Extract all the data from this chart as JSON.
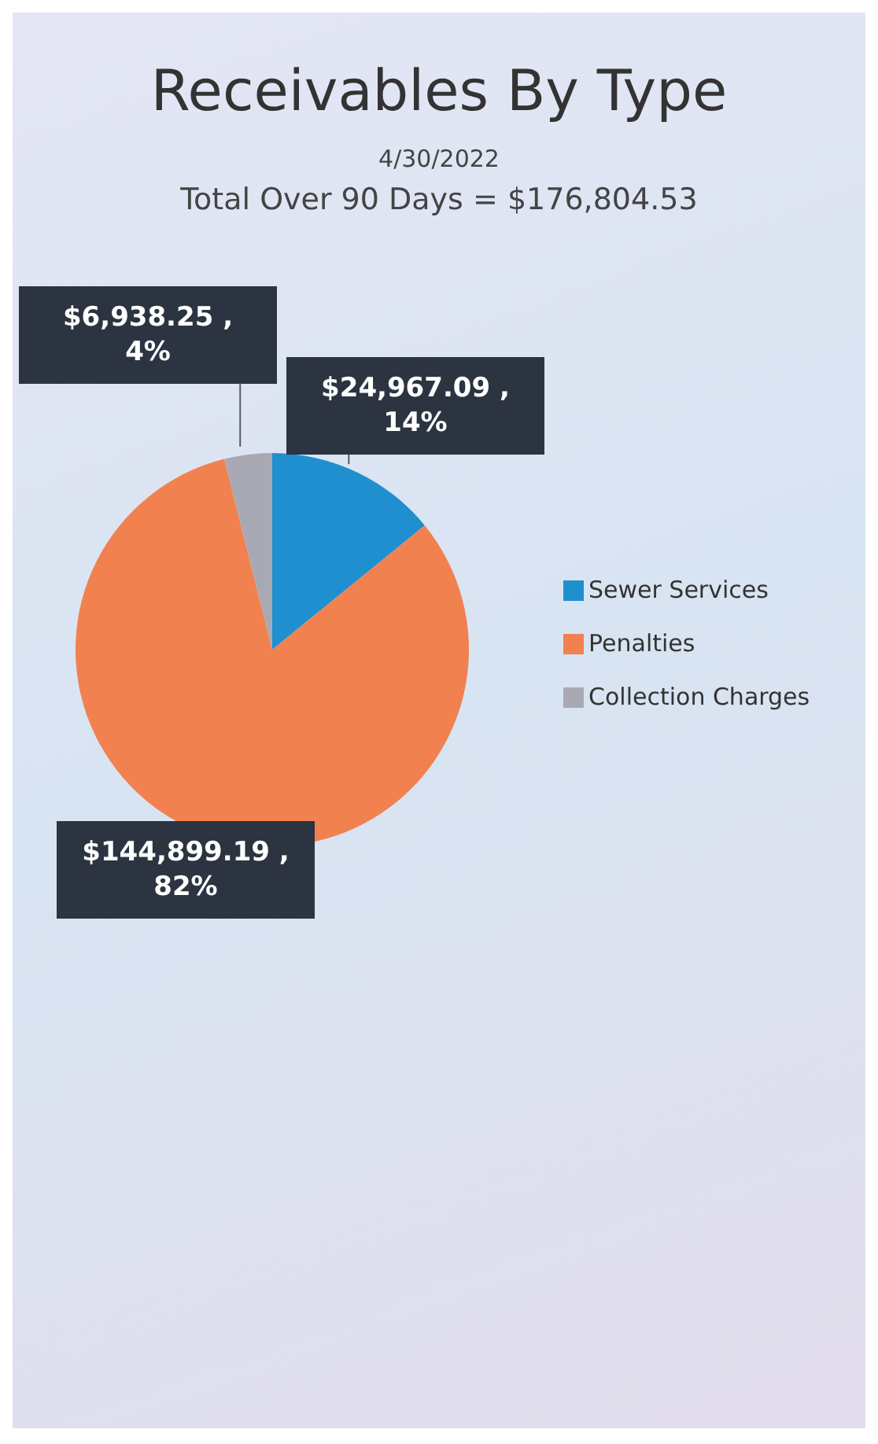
{
  "chart_data": {
    "type": "pie",
    "title": "Receivables By Type",
    "subtitle": "4/30/2022",
    "annotations": [
      "Total Over 90 Days = $176,804.53"
    ],
    "categories": [
      "Sewer Services",
      "Penalties",
      "Collection Charges"
    ],
    "values": [
      24967.09,
      144899.19,
      6938.25
    ],
    "colors": [
      "#1f8fcf",
      "#f28150",
      "#a9a9b3"
    ],
    "value_labels": [
      "$24,967.09 ,\n14%",
      "$144,899.19 ,\n82%",
      "$6,938.25 ,\n4%"
    ],
    "legend": "right"
  }
}
